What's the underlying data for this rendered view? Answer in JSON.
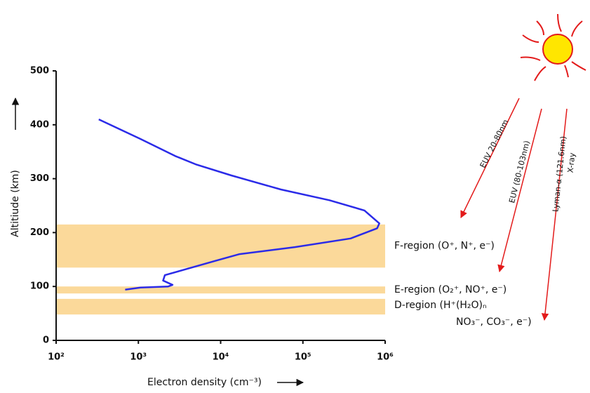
{
  "chart_data": {
    "type": "line",
    "xscale": "log",
    "x_label": "Electron density (cm⁻³)",
    "y_label": "Altitiude (km)",
    "xlim": [
      100,
      1000000
    ],
    "xticks": [
      {
        "value": 100,
        "label": "10²"
      },
      {
        "value": 1000,
        "label": "10³"
      },
      {
        "value": 10000,
        "label": "10⁴"
      },
      {
        "value": 100000,
        "label": "10⁵"
      },
      {
        "value": 1000000,
        "label": "10⁶"
      }
    ],
    "ylim": [
      0,
      500
    ],
    "yticks": [
      0,
      100,
      200,
      300,
      400,
      500
    ],
    "x": [
      330,
      1050,
      2800,
      5100,
      13500,
      54000,
      210000,
      560000,
      850000,
      800000,
      380000,
      80000,
      17000,
      8400,
      4200,
      2100,
      2000,
      2600,
      2300,
      1060,
      690
    ],
    "series": [
      {
        "color": "#2b2be8",
        "values": [
          410,
          374,
          342,
          326,
          306,
          280,
          260,
          241,
          217,
          208,
          189,
          173,
          160,
          147,
          134,
          121,
          111,
          103,
          100,
          98,
          94
        ]
      }
    ],
    "region_color": "#fbd99a",
    "regions": [
      {
        "label": [
          "F-region (O⁺, N⁺, e⁻)"
        ],
        "range": [
          135,
          215
        ]
      },
      {
        "label": [
          "E-region (O₂⁺, NO⁺, e⁻)"
        ],
        "range": [
          87,
          100
        ]
      },
      {
        "label": [
          "D-region (H⁺(H₂O)ₙ",
          "NO₃⁻, CO₃⁻, e⁻)"
        ],
        "range": [
          48,
          77
        ]
      }
    ],
    "radiation": [
      "EUV 20-80nm",
      "EUV (80-103nm)",
      "Lyman-α (121.6nm)",
      "X-ray"
    ]
  }
}
